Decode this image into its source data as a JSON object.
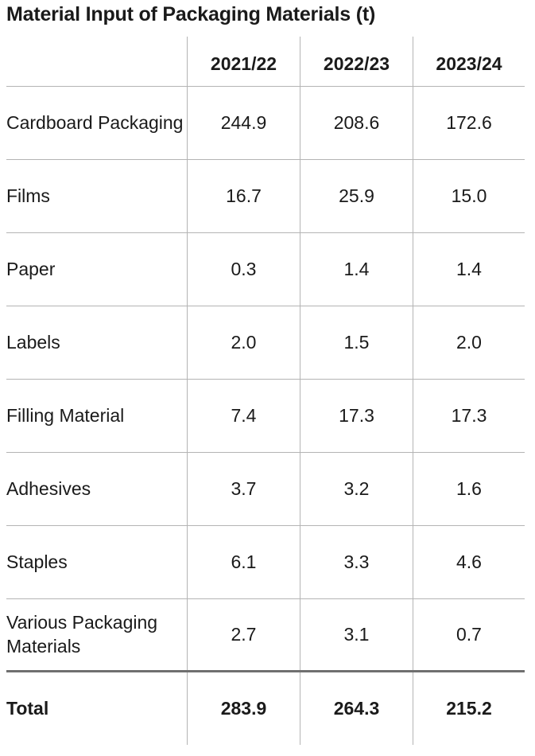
{
  "title": "Material Input of Packaging Materials (t)",
  "columns": [
    "2021/22",
    "2022/23",
    "2023/24"
  ],
  "rows": [
    {
      "label": "Cardboard Packaging",
      "values": [
        "244.9",
        "208.6",
        "172.6"
      ]
    },
    {
      "label": "Films",
      "values": [
        "16.7",
        "25.9",
        "15.0"
      ]
    },
    {
      "label": "Paper",
      "values": [
        "0.3",
        "1.4",
        "1.4"
      ]
    },
    {
      "label": "Labels",
      "values": [
        "2.0",
        "1.5",
        "2.0"
      ]
    },
    {
      "label": "Filling Material",
      "values": [
        "7.4",
        "17.3",
        "17.3"
      ]
    },
    {
      "label": "Adhesives",
      "values": [
        "3.7",
        "3.2",
        "1.6"
      ]
    },
    {
      "label": "Staples",
      "values": [
        "6.1",
        "3.3",
        "4.6"
      ]
    },
    {
      "label": "Various Packaging Materials",
      "values": [
        "2.7",
        "3.1",
        "0.7"
      ]
    }
  ],
  "total": {
    "label": "Total",
    "values": [
      "283.9",
      "264.3",
      "215.2"
    ]
  }
}
